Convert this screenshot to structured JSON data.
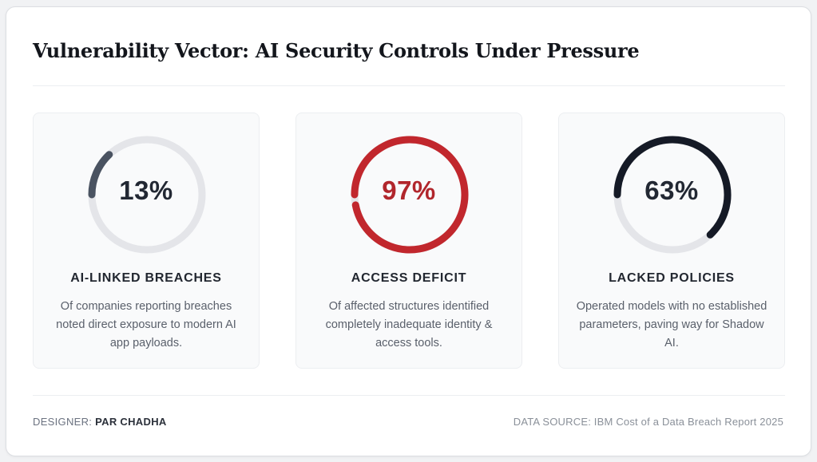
{
  "title": "Vulnerability Vector: AI Security Controls Under Pressure",
  "chart_data": {
    "type": "donut-stats",
    "track_color": "#e4e5e9",
    "stats": [
      {
        "value": 13,
        "display": "13%",
        "label": "AI-LINKED BREACHES",
        "description": "Of companies reporting breaches noted direct exposure to modern AI app payloads.",
        "ring_color": "#4a5361",
        "text_color": "#222833"
      },
      {
        "value": 97,
        "display": "97%",
        "label": "ACCESS DEFICIT",
        "description": "Of affected structures identified completely inadequate identity & access tools.",
        "ring_color": "#c1272d",
        "text_color": "#b1262c"
      },
      {
        "value": 63,
        "display": "63%",
        "label": "LACKED POLICIES",
        "description": "Operated models with no established parameters, paving way for Shadow AI.",
        "ring_color": "#151a26",
        "text_color": "#222833"
      }
    ]
  },
  "footer": {
    "designer_label": "DESIGNER:",
    "designer_name": "PAR CHADHA",
    "source": "DATA SOURCE: IBM Cost of a Data Breach Report 2025"
  }
}
